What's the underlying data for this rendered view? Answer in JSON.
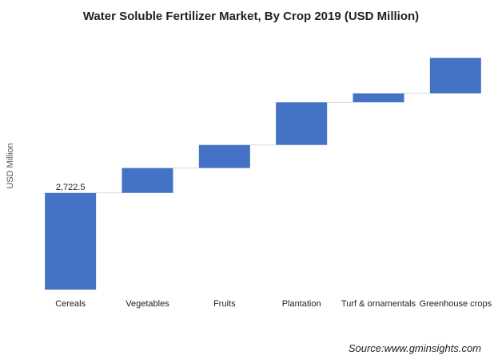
{
  "chart_data": {
    "type": "waterfall",
    "title": "Water Soluble Fertilizer Market, By Crop 2019 (USD Million)",
    "ylabel": "USD Million",
    "xlabel": "",
    "categories": [
      "Cereals",
      "Vegetables",
      "Fruits",
      "Plantation",
      "Turf & ornamentals",
      "Greenhouse crops"
    ],
    "values": [
      2722.5,
      700,
      650,
      1200,
      250,
      1000
    ],
    "data_labels": [
      "2,722.5",
      "",
      "",
      "",
      "",
      ""
    ],
    "ylim": [
      0,
      7300
    ],
    "grid": false,
    "legend": "none",
    "colors": {
      "bar": "#4472C4",
      "connector": "#d9d9d9",
      "text": "#222222"
    }
  },
  "source": "Source:www.gminsights.com"
}
